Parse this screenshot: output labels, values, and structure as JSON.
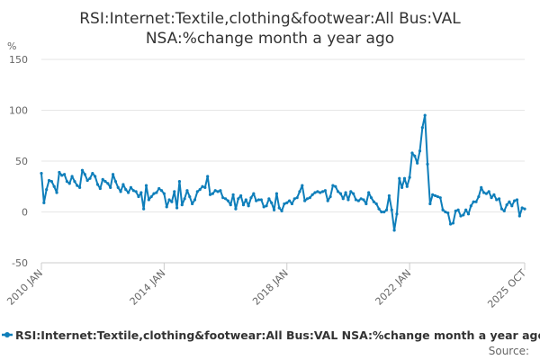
{
  "chart_data": {
    "type": "line",
    "title_line1": "RSI:Internet:Textile,clothing&footwear:All Bus:VAL",
    "title_line2": "NSA:%change month a year ago",
    "y_unit": "%",
    "ylim": [
      -50,
      150
    ],
    "y_ticks": [
      {
        "value": 150,
        "label": "150"
      },
      {
        "value": 100,
        "label": "100"
      },
      {
        "value": 50,
        "label": "50"
      },
      {
        "value": 0,
        "label": "0"
      },
      {
        "value": -50,
        "label": "-50"
      }
    ],
    "x_range": [
      "2010-01",
      "2025-10"
    ],
    "x_ticks": [
      {
        "date": "2010-01",
        "label": "2010 JAN"
      },
      {
        "date": "2014-01",
        "label": "2014 JAN"
      },
      {
        "date": "2018-01",
        "label": "2018 JAN"
      },
      {
        "date": "2022-01",
        "label": "2022 JAN"
      },
      {
        "date": "2025-10",
        "label": "2025 OCT"
      }
    ],
    "grid": true,
    "legend_position": "bottom",
    "series": [
      {
        "name": "RSI:Internet:Textile,clothing&footwear:All Bus:VAL NSA:%change month a year ago",
        "color": "#0e7eba",
        "marker": true,
        "points": [
          [
            "2010-01",
            38
          ],
          [
            "2010-02",
            9
          ],
          [
            "2010-03",
            22
          ],
          [
            "2010-04",
            31
          ],
          [
            "2010-05",
            30
          ],
          [
            "2010-06",
            25
          ],
          [
            "2010-07",
            19
          ],
          [
            "2010-08",
            39
          ],
          [
            "2010-09",
            36
          ],
          [
            "2010-10",
            37
          ],
          [
            "2010-11",
            30
          ],
          [
            "2010-12",
            28
          ],
          [
            "2011-01",
            35
          ],
          [
            "2011-02",
            30
          ],
          [
            "2011-03",
            26
          ],
          [
            "2011-04",
            24
          ],
          [
            "2011-05",
            41
          ],
          [
            "2011-06",
            37
          ],
          [
            "2011-07",
            31
          ],
          [
            "2011-08",
            33
          ],
          [
            "2011-09",
            38
          ],
          [
            "2011-10",
            35
          ],
          [
            "2011-11",
            27
          ],
          [
            "2011-12",
            23
          ],
          [
            "2012-01",
            32
          ],
          [
            "2012-02",
            30
          ],
          [
            "2012-03",
            28
          ],
          [
            "2012-04",
            24
          ],
          [
            "2012-05",
            37
          ],
          [
            "2012-06",
            30
          ],
          [
            "2012-07",
            24
          ],
          [
            "2012-08",
            20
          ],
          [
            "2012-09",
            27
          ],
          [
            "2012-10",
            22
          ],
          [
            "2012-11",
            19
          ],
          [
            "2012-12",
            24
          ],
          [
            "2013-01",
            21
          ],
          [
            "2013-02",
            20
          ],
          [
            "2013-03",
            15
          ],
          [
            "2013-04",
            19
          ],
          [
            "2013-05",
            3
          ],
          [
            "2013-06",
            26
          ],
          [
            "2013-07",
            12
          ],
          [
            "2013-08",
            15
          ],
          [
            "2013-09",
            18
          ],
          [
            "2013-10",
            19
          ],
          [
            "2013-11",
            23
          ],
          [
            "2013-12",
            21
          ],
          [
            "2014-01",
            18
          ],
          [
            "2014-02",
            5
          ],
          [
            "2014-03",
            12
          ],
          [
            "2014-04",
            10
          ],
          [
            "2014-05",
            20
          ],
          [
            "2014-06",
            4
          ],
          [
            "2014-07",
            30
          ],
          [
            "2014-08",
            7
          ],
          [
            "2014-09",
            13
          ],
          [
            "2014-10",
            21
          ],
          [
            "2014-11",
            15
          ],
          [
            "2014-12",
            8
          ],
          [
            "2015-01",
            12
          ],
          [
            "2015-02",
            20
          ],
          [
            "2015-03",
            22
          ],
          [
            "2015-04",
            25
          ],
          [
            "2015-05",
            24
          ],
          [
            "2015-06",
            35
          ],
          [
            "2015-07",
            17
          ],
          [
            "2015-08",
            18
          ],
          [
            "2015-09",
            21
          ],
          [
            "2015-10",
            20
          ],
          [
            "2015-11",
            21
          ],
          [
            "2015-12",
            14
          ],
          [
            "2016-01",
            13
          ],
          [
            "2016-02",
            11
          ],
          [
            "2016-03",
            7
          ],
          [
            "2016-04",
            17
          ],
          [
            "2016-05",
            3
          ],
          [
            "2016-06",
            13
          ],
          [
            "2016-07",
            16
          ],
          [
            "2016-08",
            7
          ],
          [
            "2016-09",
            12
          ],
          [
            "2016-10",
            6
          ],
          [
            "2016-11",
            14
          ],
          [
            "2016-12",
            18
          ],
          [
            "2017-01",
            11
          ],
          [
            "2017-02",
            12
          ],
          [
            "2017-03",
            12
          ],
          [
            "2017-04",
            5
          ],
          [
            "2017-05",
            6
          ],
          [
            "2017-06",
            13
          ],
          [
            "2017-07",
            9
          ],
          [
            "2017-08",
            2
          ],
          [
            "2017-09",
            18
          ],
          [
            "2017-10",
            4
          ],
          [
            "2017-11",
            1
          ],
          [
            "2017-12",
            8
          ],
          [
            "2018-01",
            9
          ],
          [
            "2018-02",
            11
          ],
          [
            "2018-03",
            8
          ],
          [
            "2018-04",
            13
          ],
          [
            "2018-05",
            14
          ],
          [
            "2018-06",
            20
          ],
          [
            "2018-07",
            26
          ],
          [
            "2018-08",
            11
          ],
          [
            "2018-09",
            13
          ],
          [
            "2018-10",
            14
          ],
          [
            "2018-11",
            17
          ],
          [
            "2018-12",
            19
          ],
          [
            "2019-01",
            20
          ],
          [
            "2019-02",
            19
          ],
          [
            "2019-03",
            20
          ],
          [
            "2019-04",
            21
          ],
          [
            "2019-05",
            11
          ],
          [
            "2019-06",
            15
          ],
          [
            "2019-07",
            26
          ],
          [
            "2019-08",
            25
          ],
          [
            "2019-09",
            20
          ],
          [
            "2019-10",
            18
          ],
          [
            "2019-11",
            13
          ],
          [
            "2019-12",
            19
          ],
          [
            "2020-01",
            12
          ],
          [
            "2020-02",
            20
          ],
          [
            "2020-03",
            18
          ],
          [
            "2020-04",
            12
          ],
          [
            "2020-05",
            11
          ],
          [
            "2020-06",
            13
          ],
          [
            "2020-07",
            12
          ],
          [
            "2020-08",
            8
          ],
          [
            "2020-09",
            19
          ],
          [
            "2020-10",
            14
          ],
          [
            "2020-11",
            10
          ],
          [
            "2020-12",
            8
          ],
          [
            "2021-01",
            3
          ],
          [
            "2021-02",
            0
          ],
          [
            "2021-03",
            0
          ],
          [
            "2021-04",
            2
          ],
          [
            "2021-05",
            16
          ],
          [
            "2021-06",
            2
          ],
          [
            "2021-07",
            -18
          ],
          [
            "2021-08",
            -2
          ],
          [
            "2021-09",
            33
          ],
          [
            "2021-10",
            24
          ],
          [
            "2021-11",
            33
          ],
          [
            "2021-12",
            25
          ],
          [
            "2022-01",
            34
          ],
          [
            "2022-02",
            58
          ],
          [
            "2022-03",
            55
          ],
          [
            "2022-04",
            48
          ],
          [
            "2022-05",
            60
          ],
          [
            "2022-06",
            83
          ],
          [
            "2022-07",
            95
          ],
          [
            "2022-08",
            47
          ],
          [
            "2022-09",
            8
          ],
          [
            "2022-10",
            17
          ],
          [
            "2022-11",
            16
          ],
          [
            "2022-12",
            15
          ],
          [
            "2023-01",
            14
          ],
          [
            "2023-02",
            2
          ],
          [
            "2023-03",
            0
          ],
          [
            "2023-04",
            -1
          ],
          [
            "2023-05",
            -12
          ],
          [
            "2023-06",
            -11
          ],
          [
            "2023-07",
            1
          ],
          [
            "2023-08",
            2
          ],
          [
            "2023-09",
            -4
          ],
          [
            "2023-10",
            -3
          ],
          [
            "2023-11",
            2
          ],
          [
            "2023-12",
            -2
          ],
          [
            "2024-01",
            6
          ],
          [
            "2024-02",
            10
          ],
          [
            "2024-03",
            10
          ],
          [
            "2024-04",
            15
          ],
          [
            "2024-05",
            24
          ],
          [
            "2024-06",
            19
          ],
          [
            "2024-07",
            18
          ],
          [
            "2024-08",
            20
          ],
          [
            "2024-09",
            14
          ],
          [
            "2024-10",
            17
          ],
          [
            "2024-11",
            12
          ],
          [
            "2024-12",
            13
          ],
          [
            "2025-01",
            3
          ],
          [
            "2025-02",
            1
          ],
          [
            "2025-03",
            7
          ],
          [
            "2025-04",
            10
          ],
          [
            "2025-05",
            6
          ],
          [
            "2025-06",
            11
          ],
          [
            "2025-07",
            12
          ],
          [
            "2025-08",
            -4
          ],
          [
            "2025-09",
            4
          ],
          [
            "2025-10",
            3
          ]
        ]
      }
    ],
    "source_label": "Source:"
  }
}
